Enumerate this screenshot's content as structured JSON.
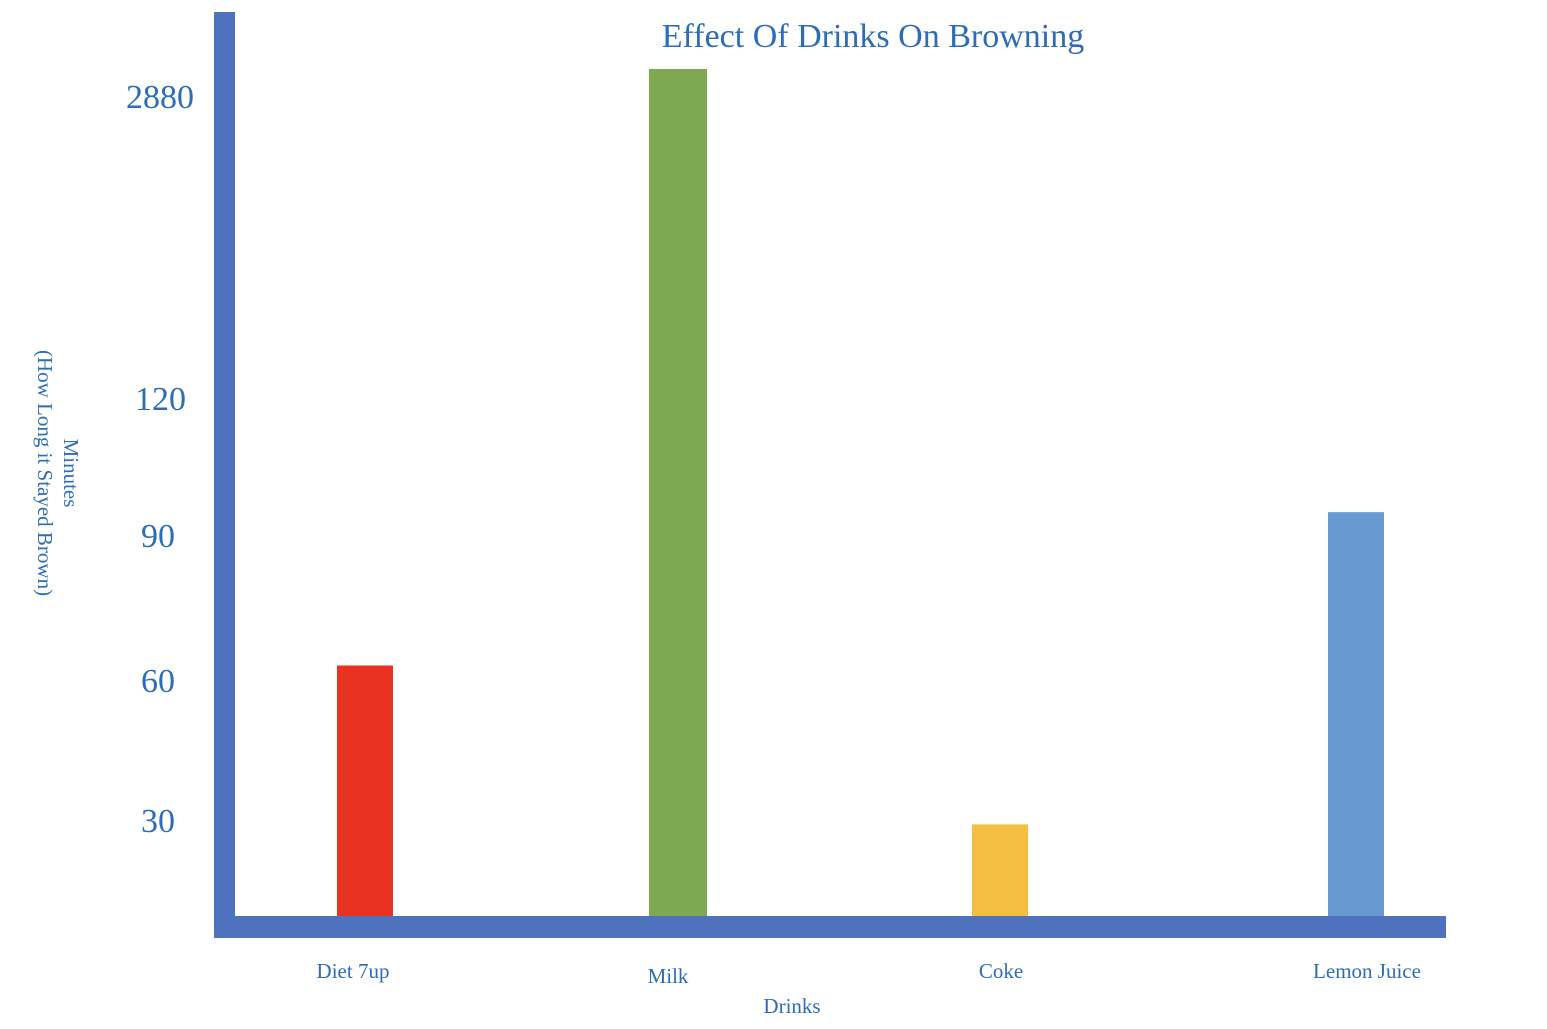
{
  "chart_data": {
    "type": "bar",
    "title": "Effect Of Drinks On Browning",
    "xlabel": "Drinks",
    "ylabel_line1": "Minutes",
    "ylabel_line2": "(How Long it Stayed Brown)",
    "categories": [
      "Diet 7up",
      "Milk",
      "Coke",
      "Lemon Juice"
    ],
    "values": [
      63,
      2880,
      29,
      95
    ],
    "bar_colors": [
      "#e83323",
      "#7fa853",
      "#f4bf41",
      "#6899d0"
    ],
    "y_ticks": [
      {
        "label": "30",
        "value": 30
      },
      {
        "label": "60",
        "value": 60
      },
      {
        "label": "90",
        "value": 90
      },
      {
        "label": "120",
        "value": 120
      },
      {
        "label": "2880",
        "value": 2880
      }
    ],
    "y_scale": "piecewise (non-linear, spacing as shown)",
    "grid": false,
    "legend": "none",
    "colors": {
      "axis": "#4f72bf",
      "text": "#2d6db3"
    }
  }
}
